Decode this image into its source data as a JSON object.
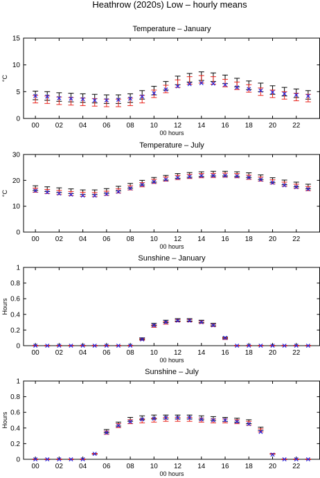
{
  "figure": {
    "title": "Heathrow (2020s) Low – hourly means"
  },
  "chart_data": [
    {
      "type": "scatter",
      "title": "Temperature – January",
      "xlabel": "00 hours",
      "ylabel": "°C",
      "ylim": [
        0,
        15
      ],
      "yticks": [
        0,
        5,
        10,
        15
      ],
      "xticks": [
        "00",
        "02",
        "04",
        "06",
        "08",
        "10",
        "12",
        "14",
        "16",
        "18",
        "20",
        "22"
      ],
      "x": [
        0,
        1,
        2,
        3,
        4,
        5,
        6,
        7,
        8,
        9,
        10,
        11,
        12,
        13,
        14,
        15,
        16,
        17,
        18,
        19,
        20,
        21,
        22,
        23
      ],
      "series": [
        {
          "marker": "errorbar",
          "color": "#000000",
          "values": [
            4.3,
            4.2,
            4.0,
            3.9,
            3.8,
            3.7,
            3.6,
            3.6,
            3.8,
            4.4,
            5.2,
            6.1,
            7.1,
            7.6,
            7.9,
            7.7,
            7.3,
            6.7,
            6.2,
            5.8,
            5.3,
            5.0,
            4.7,
            4.4
          ],
          "err": [
            0.8,
            0.8,
            0.8,
            0.8,
            0.8,
            0.8,
            0.8,
            0.8,
            0.8,
            0.8,
            0.8,
            0.8,
            0.8,
            0.8,
            0.8,
            0.8,
            0.8,
            0.8,
            0.8,
            0.8,
            0.8,
            0.8,
            0.8,
            0.8
          ]
        },
        {
          "marker": "errorbar",
          "color": "#e8231c",
          "values": [
            3.6,
            3.5,
            3.3,
            3.2,
            3.1,
            3.0,
            2.9,
            2.9,
            3.1,
            3.6,
            4.6,
            5.5,
            6.5,
            7.1,
            7.3,
            7.1,
            6.6,
            6.1,
            5.6,
            5.0,
            4.6,
            4.3,
            4.0,
            3.8
          ],
          "err": [
            0.7,
            0.7,
            0.7,
            0.7,
            0.7,
            0.7,
            0.7,
            0.7,
            0.7,
            0.7,
            0.7,
            0.7,
            0.7,
            0.7,
            0.7,
            0.7,
            0.7,
            0.7,
            0.7,
            0.7,
            0.7,
            0.7,
            0.7,
            0.7
          ]
        },
        {
          "marker": "x",
          "color": "#2222dd",
          "values": [
            4.2,
            4.1,
            3.8,
            3.7,
            3.6,
            3.4,
            3.4,
            3.5,
            3.7,
            4.1,
            4.7,
            5.4,
            6.0,
            6.4,
            6.6,
            6.5,
            6.3,
            5.8,
            5.5,
            5.2,
            4.9,
            4.6,
            4.4,
            4.2
          ]
        }
      ]
    },
    {
      "type": "scatter",
      "title": "Temperature – July",
      "xlabel": "00 hours",
      "ylabel": "°C",
      "ylim": [
        0,
        30
      ],
      "yticks": [
        0,
        10,
        20,
        30
      ],
      "xticks": [
        "00",
        "02",
        "04",
        "06",
        "08",
        "10",
        "12",
        "14",
        "16",
        "18",
        "20",
        "22"
      ],
      "x": [
        0,
        1,
        2,
        3,
        4,
        5,
        6,
        7,
        8,
        9,
        10,
        11,
        12,
        13,
        14,
        15,
        16,
        17,
        18,
        19,
        20,
        21,
        22,
        23
      ],
      "series": [
        {
          "marker": "errorbar",
          "color": "#000000",
          "values": [
            17.0,
            16.6,
            16.2,
            15.8,
            15.4,
            15.4,
            15.9,
            16.8,
            17.9,
            19.1,
            20.2,
            21.0,
            21.7,
            22.1,
            22.4,
            22.6,
            22.6,
            22.4,
            22.0,
            21.2,
            20.1,
            19.2,
            18.4,
            17.6
          ],
          "err": [
            0.9,
            0.9,
            0.9,
            0.9,
            0.9,
            0.9,
            0.9,
            0.9,
            0.9,
            0.9,
            0.9,
            0.9,
            0.9,
            0.9,
            0.9,
            0.9,
            0.9,
            0.9,
            0.9,
            0.9,
            0.9,
            0.9,
            0.9,
            0.9
          ]
        },
        {
          "marker": "errorbar",
          "color": "#e8231c",
          "values": [
            16.2,
            15.7,
            15.3,
            14.9,
            14.6,
            14.5,
            15.0,
            15.9,
            17.1,
            18.3,
            19.6,
            20.5,
            21.1,
            21.5,
            21.8,
            21.9,
            22.0,
            21.8,
            21.2,
            20.5,
            19.4,
            18.5,
            17.7,
            16.8
          ],
          "err": [
            0.8,
            0.8,
            0.8,
            0.8,
            0.8,
            0.8,
            0.8,
            0.8,
            0.8,
            0.8,
            0.8,
            0.8,
            0.8,
            0.8,
            0.8,
            0.8,
            0.8,
            0.8,
            0.8,
            0.8,
            0.8,
            0.8,
            0.8,
            0.8
          ]
        },
        {
          "marker": "x",
          "color": "#2222dd",
          "values": [
            16.0,
            15.4,
            14.9,
            14.5,
            14.1,
            14.1,
            14.7,
            15.6,
            16.9,
            18.3,
            19.4,
            20.3,
            21.0,
            21.4,
            21.7,
            21.8,
            21.8,
            21.6,
            21.1,
            20.3,
            19.1,
            18.1,
            17.4,
            16.6
          ]
        }
      ]
    },
    {
      "type": "scatter",
      "title": "Sunshine – January",
      "xlabel": "00 hours",
      "ylabel": "Hours",
      "ylim": [
        0,
        1
      ],
      "yticks": [
        0,
        0.2,
        0.4,
        0.6,
        0.8,
        1
      ],
      "xticks": [
        "00",
        "02",
        "04",
        "06",
        "08",
        "10",
        "12",
        "14",
        "16",
        "18",
        "20",
        "22"
      ],
      "x": [
        0,
        1,
        2,
        3,
        4,
        5,
        6,
        7,
        8,
        9,
        10,
        11,
        12,
        13,
        14,
        15,
        16,
        17,
        18,
        19,
        20,
        21,
        22,
        23
      ],
      "series": [
        {
          "marker": "errorbar",
          "color": "#000000",
          "values": [
            0,
            0,
            0,
            0,
            0,
            0,
            0,
            0,
            0,
            0.09,
            0.27,
            0.31,
            0.33,
            0.33,
            0.31,
            0.27,
            0.1,
            0,
            0,
            0,
            0,
            0,
            0,
            0
          ],
          "err": [
            0.003,
            0.003,
            0.003,
            0.003,
            0.003,
            0.003,
            0.003,
            0.003,
            0.003,
            0.01,
            0.015,
            0.015,
            0.015,
            0.015,
            0.015,
            0.015,
            0.01,
            0.003,
            0.003,
            0.003,
            0.003,
            0.003,
            0.003,
            0.003
          ]
        },
        {
          "marker": "errorbar",
          "color": "#e8231c",
          "values": [
            0,
            0,
            0,
            0,
            0,
            0,
            0,
            0,
            0,
            0.08,
            0.25,
            0.29,
            0.32,
            0.32,
            0.3,
            0.26,
            0.09,
            0,
            0,
            0,
            0,
            0,
            0,
            0
          ],
          "err": [
            0.003,
            0.003,
            0.003,
            0.003,
            0.003,
            0.003,
            0.003,
            0.003,
            0.003,
            0.01,
            0.015,
            0.015,
            0.015,
            0.015,
            0.015,
            0.015,
            0.01,
            0.003,
            0.003,
            0.003,
            0.003,
            0.003,
            0.003,
            0.003
          ]
        },
        {
          "marker": "x",
          "color": "#2222dd",
          "values": [
            0,
            0,
            0,
            0,
            0,
            0,
            0,
            0,
            0,
            0.08,
            0.26,
            0.3,
            0.32,
            0.32,
            0.3,
            0.26,
            0.1,
            0,
            0,
            0,
            0,
            0,
            0,
            0
          ]
        }
      ]
    },
    {
      "type": "scatter",
      "title": "Sunshine – July",
      "xlabel": "00 hours",
      "ylabel": "Hours",
      "ylim": [
        0,
        1
      ],
      "yticks": [
        0,
        0.2,
        0.4,
        0.6,
        0.8,
        1
      ],
      "xticks": [
        "00",
        "02",
        "04",
        "06",
        "08",
        "10",
        "12",
        "14",
        "16",
        "18",
        "20",
        "22"
      ],
      "x": [
        0,
        1,
        2,
        3,
        4,
        5,
        6,
        7,
        8,
        9,
        10,
        11,
        12,
        13,
        14,
        15,
        16,
        17,
        18,
        19,
        20,
        21,
        22,
        23
      ],
      "series": [
        {
          "marker": "errorbar",
          "color": "#000000",
          "values": [
            0,
            0,
            0,
            0,
            0,
            0.07,
            0.36,
            0.45,
            0.51,
            0.53,
            0.54,
            0.54,
            0.54,
            0.54,
            0.53,
            0.52,
            0.51,
            0.5,
            0.48,
            0.39,
            0.07,
            0,
            0,
            0
          ],
          "err": [
            0.003,
            0.003,
            0.003,
            0.003,
            0.003,
            0.005,
            0.02,
            0.025,
            0.025,
            0.025,
            0.025,
            0.025,
            0.025,
            0.025,
            0.025,
            0.025,
            0.025,
            0.025,
            0.025,
            0.02,
            0.005,
            0.003,
            0.003,
            0.003
          ]
        },
        {
          "marker": "errorbar",
          "color": "#e8231c",
          "values": [
            0,
            0,
            0,
            0,
            0,
            0.07,
            0.34,
            0.43,
            0.48,
            0.49,
            0.5,
            0.51,
            0.51,
            0.51,
            0.5,
            0.49,
            0.49,
            0.48,
            0.46,
            0.37,
            0.07,
            0,
            0,
            0
          ],
          "err": [
            0.003,
            0.003,
            0.003,
            0.003,
            0.003,
            0.005,
            0.02,
            0.025,
            0.025,
            0.025,
            0.025,
            0.025,
            0.025,
            0.025,
            0.025,
            0.025,
            0.025,
            0.025,
            0.025,
            0.02,
            0.005,
            0.003,
            0.003,
            0.003
          ]
        },
        {
          "marker": "x",
          "color": "#2222dd",
          "values": [
            0,
            0,
            0,
            0,
            0,
            0.07,
            0.34,
            0.43,
            0.48,
            0.51,
            0.52,
            0.53,
            0.53,
            0.53,
            0.51,
            0.5,
            0.5,
            0.48,
            0.45,
            0.35,
            0.06,
            0,
            0,
            0
          ]
        }
      ]
    }
  ]
}
